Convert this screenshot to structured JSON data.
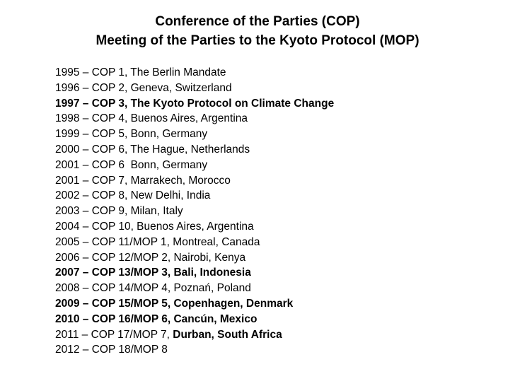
{
  "header": {
    "title_lines": [
      "Conference of the Parties (COP)",
      "Meeting of the Parties to the Kyoto Protocol (MOP)"
    ]
  },
  "items": [
    {
      "parts": [
        {
          "text": "1995 – COP 1, The Berlin Mandate",
          "bold": false
        }
      ]
    },
    {
      "parts": [
        {
          "text": "1996 – COP 2, Geneva, Switzerland",
          "bold": false
        }
      ]
    },
    {
      "parts": [
        {
          "text": "1997 – COP 3, The Kyoto Protocol on Climate Change",
          "bold": true
        }
      ]
    },
    {
      "parts": [
        {
          "text": "1998 – COP 4, Buenos Aires, Argentina",
          "bold": false
        }
      ]
    },
    {
      "parts": [
        {
          "text": "1999 – COP 5, Bonn, Germany",
          "bold": false
        }
      ]
    },
    {
      "parts": [
        {
          "text": "2000 – COP 6, The Hague, Netherlands",
          "bold": false
        }
      ]
    },
    {
      "parts": [
        {
          "text": "2001 – COP 6  Bonn, Germany",
          "bold": false
        }
      ]
    },
    {
      "parts": [
        {
          "text": "2001 – COP 7, Marrakech, Morocco",
          "bold": false
        }
      ]
    },
    {
      "parts": [
        {
          "text": "2002 – COP 8, New Delhi, India",
          "bold": false
        }
      ]
    },
    {
      "parts": [
        {
          "text": "2003 – COP 9, Milan, Italy",
          "bold": false
        }
      ]
    },
    {
      "parts": [
        {
          "text": "2004 – COP 10, Buenos Aires, Argentina",
          "bold": false
        }
      ]
    },
    {
      "parts": [
        {
          "text": "2005 – COP 11/MOP 1, Montreal, Canada",
          "bold": false
        }
      ]
    },
    {
      "parts": [
        {
          "text": "2006 – COP 12/MOP 2, Nairobi, Kenya",
          "bold": false
        }
      ]
    },
    {
      "parts": [
        {
          "text": "2007 – COP 13/MOP 3, Bali, Indonesia",
          "bold": true
        }
      ]
    },
    {
      "parts": [
        {
          "text": "2008 – COP 14/MOP 4, Poznań, Poland",
          "bold": false
        }
      ]
    },
    {
      "parts": [
        {
          "text": "2009 – COP 15/MOP 5, Copenhagen, Denmark",
          "bold": true
        }
      ]
    },
    {
      "parts": [
        {
          "text": "2010 – COP 16/MOP 6, Cancún, Mexico",
          "bold": true
        }
      ]
    },
    {
      "parts": [
        {
          "text": "2011 – COP 17/MOP 7, ",
          "bold": false
        },
        {
          "text": "Durban, South Africa",
          "bold": true
        }
      ]
    },
    {
      "parts": [
        {
          "text": "2012 – COP 18/MOP 8",
          "bold": false
        }
      ]
    }
  ]
}
